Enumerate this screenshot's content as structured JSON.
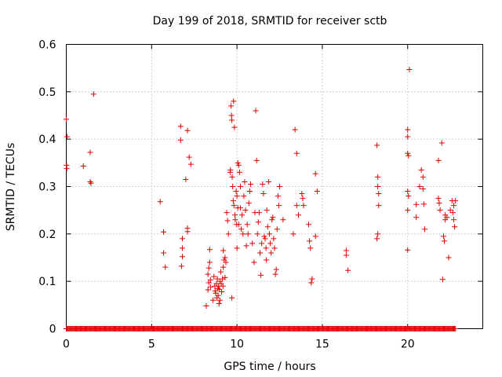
{
  "chart_data": {
    "type": "scatter",
    "title": "Day 199 of 2018, SRMTID for receiver sctb",
    "xlabel": "GPS time / hours",
    "ylabel": "SRMTID / TECUs",
    "xlim": [
      0,
      24.4
    ],
    "ylim": [
      0,
      0.6
    ],
    "xticks": [
      0,
      5,
      10,
      15,
      20
    ],
    "xtick_labels": [
      "0",
      "5",
      "10",
      "15",
      "20"
    ],
    "yticks": [
      0,
      0.1,
      0.2,
      0.3,
      0.4,
      0.5,
      0.6
    ],
    "ytick_labels": [
      "0",
      "0.1",
      "0.2",
      "0.3",
      "0.4",
      "0.5",
      "0.6"
    ],
    "grid": true,
    "marker": "plus",
    "marker_color": "#e00000",
    "zero_baseline_range": [
      0,
      22.8
    ],
    "series": [
      {
        "name": "SRMTID",
        "points": [
          [
            0.0,
            0.442
          ],
          [
            0.05,
            0.405
          ],
          [
            0.02,
            0.345
          ],
          [
            0.03,
            0.338
          ],
          [
            1.0,
            0.343
          ],
          [
            1.4,
            0.372
          ],
          [
            1.4,
            0.31
          ],
          [
            1.45,
            0.307
          ],
          [
            1.6,
            0.495
          ],
          [
            5.5,
            0.268
          ],
          [
            5.7,
            0.204
          ],
          [
            5.7,
            0.16
          ],
          [
            5.8,
            0.13
          ],
          [
            6.7,
            0.427
          ],
          [
            6.7,
            0.398
          ],
          [
            6.8,
            0.19
          ],
          [
            6.8,
            0.17
          ],
          [
            6.8,
            0.152
          ],
          [
            6.75,
            0.132
          ],
          [
            7.0,
            0.315
          ],
          [
            7.1,
            0.418
          ],
          [
            7.1,
            0.212
          ],
          [
            7.1,
            0.205
          ],
          [
            7.2,
            0.362
          ],
          [
            7.3,
            0.347
          ],
          [
            8.2,
            0.048
          ],
          [
            8.3,
            0.082
          ],
          [
            8.3,
            0.115
          ],
          [
            8.35,
            0.097
          ],
          [
            8.35,
            0.128
          ],
          [
            8.4,
            0.14
          ],
          [
            8.4,
            0.167
          ],
          [
            8.45,
            0.103
          ],
          [
            8.45,
            0.088
          ],
          [
            8.6,
            0.06
          ],
          [
            8.65,
            0.11
          ],
          [
            8.7,
            0.09
          ],
          [
            8.72,
            0.08
          ],
          [
            8.75,
            0.075
          ],
          [
            8.8,
            0.095
          ],
          [
            8.82,
            0.065
          ],
          [
            8.85,
            0.105
          ],
          [
            8.88,
            0.085
          ],
          [
            8.9,
            0.07
          ],
          [
            8.92,
            0.09
          ],
          [
            8.95,
            0.053
          ],
          [
            8.97,
            0.083
          ],
          [
            9.0,
            0.1
          ],
          [
            9.0,
            0.06
          ],
          [
            9.05,
            0.12
          ],
          [
            9.08,
            0.095
          ],
          [
            9.1,
            0.078
          ],
          [
            9.15,
            0.105
          ],
          [
            9.18,
            0.09
          ],
          [
            9.2,
            0.13
          ],
          [
            9.2,
            0.165
          ],
          [
            9.25,
            0.145
          ],
          [
            9.3,
            0.15
          ],
          [
            9.3,
            0.108
          ],
          [
            9.35,
            0.14
          ],
          [
            9.4,
            0.245
          ],
          [
            9.45,
            0.228
          ],
          [
            9.5,
            0.2
          ],
          [
            9.6,
            0.33
          ],
          [
            9.62,
            0.335
          ],
          [
            9.65,
            0.47
          ],
          [
            9.68,
            0.45
          ],
          [
            9.7,
            0.44
          ],
          [
            9.72,
            0.32
          ],
          [
            9.75,
            0.3
          ],
          [
            9.78,
            0.27
          ],
          [
            9.8,
            0.48
          ],
          [
            9.82,
            0.26
          ],
          [
            9.85,
            0.425
          ],
          [
            9.88,
            0.24
          ],
          [
            9.9,
            0.23
          ],
          [
            9.7,
            0.065
          ],
          [
            9.95,
            0.29
          ],
          [
            9.98,
            0.22
          ],
          [
            10.0,
            0.28
          ],
          [
            10.0,
            0.17
          ],
          [
            10.05,
            0.35
          ],
          [
            10.05,
            0.255
          ],
          [
            10.1,
            0.345
          ],
          [
            10.1,
            0.22
          ],
          [
            10.15,
            0.33
          ],
          [
            10.2,
            0.3
          ],
          [
            10.2,
            0.255
          ],
          [
            10.25,
            0.21
          ],
          [
            10.3,
            0.24
          ],
          [
            10.35,
            0.2
          ],
          [
            10.4,
            0.28
          ],
          [
            10.45,
            0.31
          ],
          [
            10.5,
            0.25
          ],
          [
            10.55,
            0.175
          ],
          [
            10.6,
            0.22
          ],
          [
            10.65,
            0.2
          ],
          [
            10.7,
            0.265
          ],
          [
            10.75,
            0.29
          ],
          [
            10.8,
            0.305
          ],
          [
            10.9,
            0.18
          ],
          [
            11.0,
            0.14
          ],
          [
            11.05,
            0.245
          ],
          [
            11.1,
            0.46
          ],
          [
            11.15,
            0.355
          ],
          [
            11.2,
            0.2
          ],
          [
            11.25,
            0.225
          ],
          [
            11.3,
            0.245
          ],
          [
            11.35,
            0.16
          ],
          [
            11.4,
            0.113
          ],
          [
            11.45,
            0.18
          ],
          [
            11.5,
            0.305
          ],
          [
            11.55,
            0.285
          ],
          [
            11.6,
            0.195
          ],
          [
            11.65,
            0.19
          ],
          [
            11.7,
            0.17
          ],
          [
            11.72,
            0.145
          ],
          [
            11.75,
            0.25
          ],
          [
            11.8,
            0.215
          ],
          [
            11.85,
            0.31
          ],
          [
            11.9,
            0.2
          ],
          [
            11.95,
            0.18
          ],
          [
            12.0,
            0.16
          ],
          [
            12.05,
            0.23
          ],
          [
            12.1,
            0.235
          ],
          [
            12.15,
            0.19
          ],
          [
            12.2,
            0.17
          ],
          [
            12.25,
            0.115
          ],
          [
            12.3,
            0.125
          ],
          [
            12.35,
            0.21
          ],
          [
            12.4,
            0.28
          ],
          [
            12.45,
            0.26
          ],
          [
            12.5,
            0.3
          ],
          [
            12.7,
            0.23
          ],
          [
            13.3,
            0.2
          ],
          [
            13.4,
            0.42
          ],
          [
            13.5,
            0.37
          ],
          [
            13.5,
            0.26
          ],
          [
            13.6,
            0.24
          ],
          [
            13.8,
            0.285
          ],
          [
            13.85,
            0.275
          ],
          [
            13.9,
            0.26
          ],
          [
            14.2,
            0.22
          ],
          [
            14.25,
            0.185
          ],
          [
            14.3,
            0.17
          ],
          [
            14.35,
            0.097
          ],
          [
            14.4,
            0.105
          ],
          [
            14.6,
            0.195
          ],
          [
            14.6,
            0.327
          ],
          [
            14.7,
            0.29
          ],
          [
            16.4,
            0.165
          ],
          [
            16.4,
            0.155
          ],
          [
            16.5,
            0.123
          ],
          [
            18.2,
            0.387
          ],
          [
            18.25,
            0.32
          ],
          [
            18.25,
            0.3
          ],
          [
            18.3,
            0.285
          ],
          [
            18.3,
            0.26
          ],
          [
            18.25,
            0.2
          ],
          [
            18.2,
            0.19
          ],
          [
            20.0,
            0.42
          ],
          [
            20.0,
            0.405
          ],
          [
            20.0,
            0.37
          ],
          [
            20.05,
            0.365
          ],
          [
            20.0,
            0.29
          ],
          [
            20.05,
            0.28
          ],
          [
            20.0,
            0.25
          ],
          [
            20.0,
            0.166
          ],
          [
            20.1,
            0.547
          ],
          [
            20.5,
            0.235
          ],
          [
            20.5,
            0.262
          ],
          [
            20.7,
            0.3
          ],
          [
            20.8,
            0.335
          ],
          [
            20.9,
            0.32
          ],
          [
            20.9,
            0.295
          ],
          [
            20.95,
            0.263
          ],
          [
            21.0,
            0.21
          ],
          [
            21.8,
            0.355
          ],
          [
            21.8,
            0.275
          ],
          [
            21.85,
            0.265
          ],
          [
            21.9,
            0.25
          ],
          [
            22.0,
            0.392
          ],
          [
            22.05,
            0.104
          ],
          [
            22.1,
            0.195
          ],
          [
            22.15,
            0.185
          ],
          [
            22.2,
            0.24
          ],
          [
            22.2,
            0.23
          ],
          [
            22.3,
            0.235
          ],
          [
            22.4,
            0.15
          ],
          [
            22.5,
            0.25
          ],
          [
            22.6,
            0.27
          ],
          [
            22.65,
            0.245
          ],
          [
            22.7,
            0.23
          ],
          [
            22.7,
            0.26
          ],
          [
            22.75,
            0.215
          ],
          [
            22.8,
            0.27
          ]
        ]
      }
    ]
  }
}
